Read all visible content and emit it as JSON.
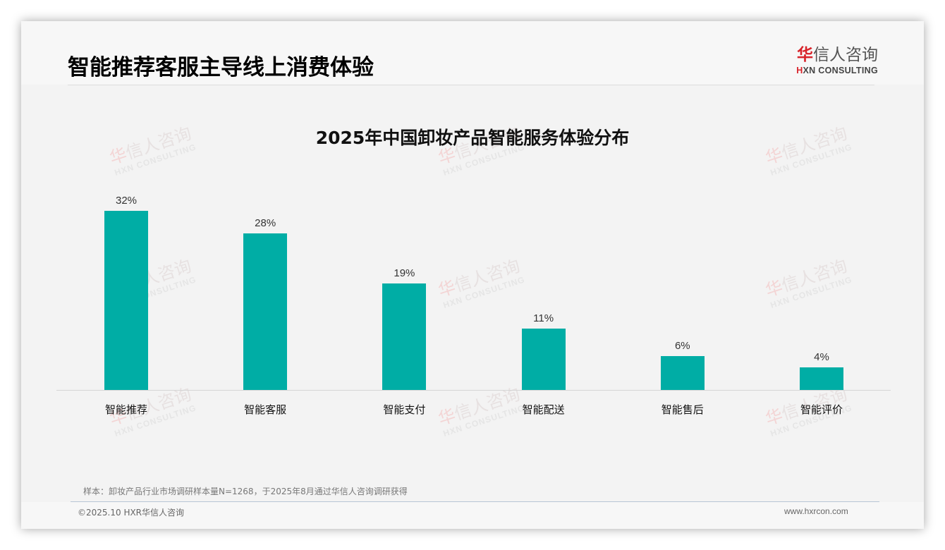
{
  "header": {
    "title": "智能推荐客服主导线上消费体验",
    "logo": {
      "cn_red": "华",
      "cn_rest": "信人咨询",
      "en_mark": "H",
      "en_rest": "XN CONSULTING"
    }
  },
  "watermark": {
    "cn_red": "华",
    "cn_rest": "信人咨询",
    "en": "HXN CONSULTING"
  },
  "chart_data": {
    "type": "bar",
    "title": "2025年中国卸妆产品智能服务体验分布",
    "categories": [
      "智能推荐",
      "智能客服",
      "智能支付",
      "智能配送",
      "智能售后",
      "智能评价"
    ],
    "values": [
      32,
      28,
      19,
      11,
      6,
      4
    ],
    "value_labels": [
      "32%",
      "28%",
      "19%",
      "11%",
      "6%",
      "4%"
    ],
    "unit": "%",
    "xlabel": "",
    "ylabel": "",
    "ylim": [
      0,
      32
    ],
    "grid": false,
    "legend": null,
    "bar_color": "#00ada5"
  },
  "footer": {
    "note": "样本：卸妆产品行业市场调研样本量N=1268，于2025年8月通过华信人咨询调研获得",
    "copyright": "©2025.10 HXR华信人咨询",
    "website": "www.hxrcon.com"
  }
}
